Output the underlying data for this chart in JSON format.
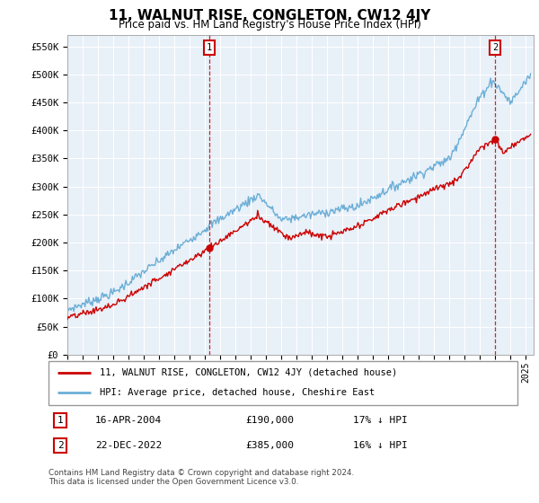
{
  "title": "11, WALNUT RISE, CONGLETON, CW12 4JY",
  "subtitle": "Price paid vs. HM Land Registry's House Price Index (HPI)",
  "ylabel_ticks": [
    "£0",
    "£50K",
    "£100K",
    "£150K",
    "£200K",
    "£250K",
    "£300K",
    "£350K",
    "£400K",
    "£450K",
    "£500K",
    "£550K"
  ],
  "ytick_values": [
    0,
    50000,
    100000,
    150000,
    200000,
    250000,
    300000,
    350000,
    400000,
    450000,
    500000,
    550000
  ],
  "ylim": [
    0,
    570000
  ],
  "xlim_start": 1995.0,
  "xlim_end": 2025.5,
  "marker1_x": 2004.29,
  "marker1_y": 190000,
  "marker2_x": 2022.97,
  "marker2_y": 385000,
  "legend_line1": "11, WALNUT RISE, CONGLETON, CW12 4JY (detached house)",
  "legend_line2": "HPI: Average price, detached house, Cheshire East",
  "footer": "Contains HM Land Registry data © Crown copyright and database right 2024.\nThis data is licensed under the Open Government Licence v3.0.",
  "hpi_color": "#6baed6",
  "price_color": "#cc0000",
  "chart_bg": "#e8f0f8",
  "bg_color": "#ffffff",
  "grid_color": "#ffffff",
  "table_row1": [
    "1",
    "16-APR-2004",
    "£190,000",
    "17% ↓ HPI"
  ],
  "table_row2": [
    "2",
    "22-DEC-2022",
    "£385,000",
    "16% ↓ HPI"
  ]
}
